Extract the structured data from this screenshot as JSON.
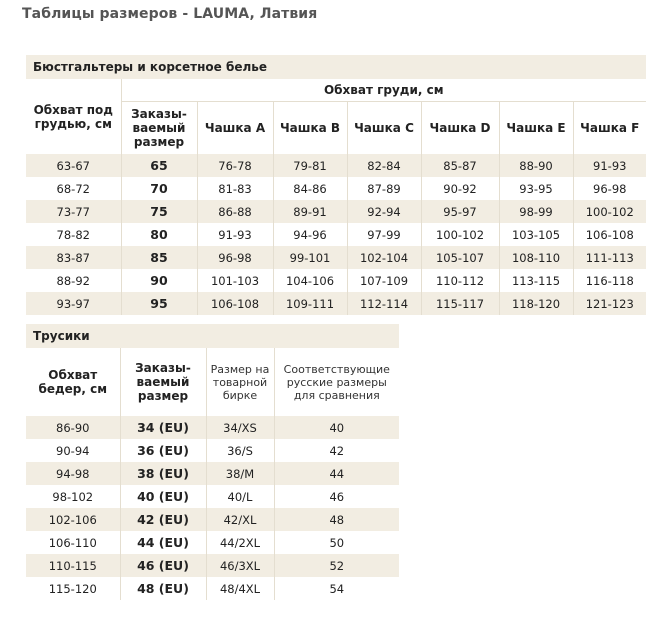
{
  "title": "Таблицы размеров - LAUMA, Латвия",
  "bra": {
    "section": "Бюстгальтеры и корсетное белье",
    "underbust_header": "Обхват под грудью, см",
    "chest_header": "Обхват груди, см",
    "order_header": "Заказы- ваемый размер",
    "cups": [
      "Чашка A",
      "Чашка B",
      "Чашка C",
      "Чашка D",
      "Чашка E",
      "Чашка F"
    ],
    "rows": [
      {
        "underbust": "63-67",
        "size": "65",
        "cups": [
          "76-78",
          "79-81",
          "82-84",
          "85-87",
          "88-90",
          "91-93"
        ]
      },
      {
        "underbust": "68-72",
        "size": "70",
        "cups": [
          "81-83",
          "84-86",
          "87-89",
          "90-92",
          "93-95",
          "96-98"
        ]
      },
      {
        "underbust": "73-77",
        "size": "75",
        "cups": [
          "86-88",
          "89-91",
          "92-94",
          "95-97",
          "98-99",
          "100-102"
        ]
      },
      {
        "underbust": "78-82",
        "size": "80",
        "cups": [
          "91-93",
          "94-96",
          "97-99",
          "100-102",
          "103-105",
          "106-108"
        ]
      },
      {
        "underbust": "83-87",
        "size": "85",
        "cups": [
          "96-98",
          "99-101",
          "102-104",
          "105-107",
          "108-110",
          "111-113"
        ]
      },
      {
        "underbust": "88-92",
        "size": "90",
        "cups": [
          "101-103",
          "104-106",
          "107-109",
          "110-112",
          "113-115",
          "116-118"
        ]
      },
      {
        "underbust": "93-97",
        "size": "95",
        "cups": [
          "106-108",
          "109-111",
          "112-114",
          "115-117",
          "118-120",
          "121-123"
        ]
      }
    ]
  },
  "panties": {
    "section": "Трусики",
    "headers": {
      "hips": "Обхват бедер, см",
      "order": "Заказы- ваемый размер",
      "tag": "Размер на товарной бирке",
      "russian": "Соответствующие русские размеры для сравнения"
    },
    "rows": [
      {
        "hips": "86-90",
        "size": "34 (EU)",
        "tag": "34/XS",
        "ru": "40"
      },
      {
        "hips": "90-94",
        "size": "36 (EU)",
        "tag": "36/S",
        "ru": "42"
      },
      {
        "hips": "94-98",
        "size": "38 (EU)",
        "tag": "38/M",
        "ru": "44"
      },
      {
        "hips": "98-102",
        "size": "40 (EU)",
        "tag": "40/L",
        "ru": "46"
      },
      {
        "hips": "102-106",
        "size": "42 (EU)",
        "tag": "42/XL",
        "ru": "48"
      },
      {
        "hips": "106-110",
        "size": "44 (EU)",
        "tag": "44/2XL",
        "ru": "50"
      },
      {
        "hips": "110-115",
        "size": "46 (EU)",
        "tag": "46/3XL",
        "ru": "52"
      },
      {
        "hips": "115-120",
        "size": "48 (EU)",
        "tag": "48/4XL",
        "ru": "54"
      }
    ]
  }
}
